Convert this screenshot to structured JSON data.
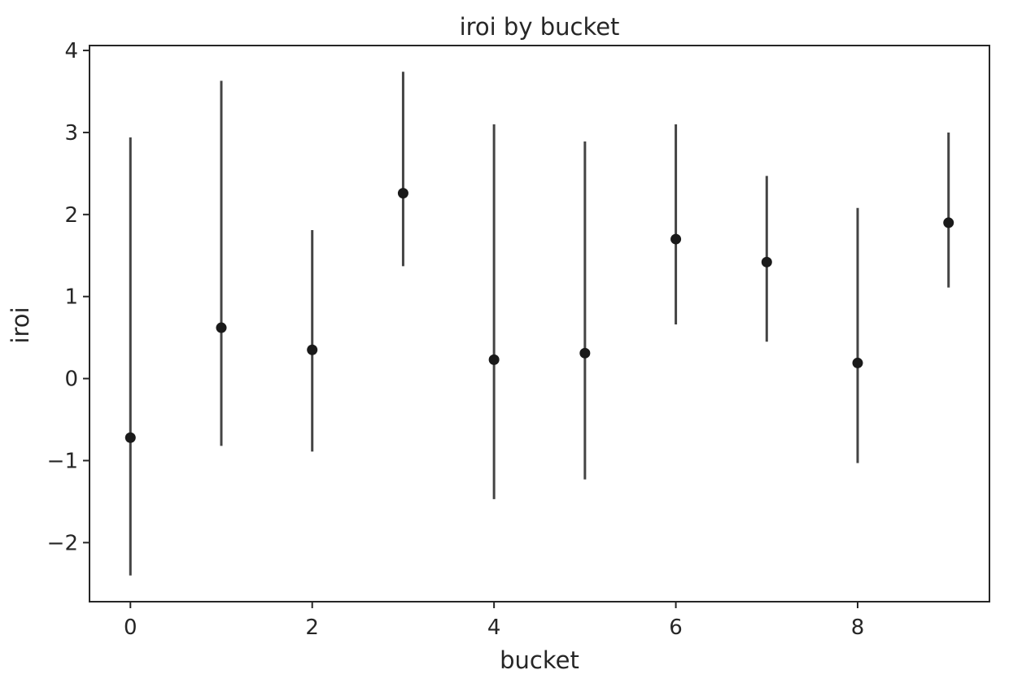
{
  "chart_data": {
    "type": "scatter",
    "title": "iroi by bucket",
    "xlabel": "bucket",
    "ylabel": "iroi",
    "xlim": [
      -0.45,
      9.45
    ],
    "ylim": [
      -2.72,
      4.06
    ],
    "xticks": [
      0,
      2,
      4,
      6,
      8
    ],
    "xtick_labels": [
      "0",
      "2",
      "4",
      "6",
      "8"
    ],
    "yticks": [
      -2,
      -1,
      0,
      1,
      2,
      3,
      4
    ],
    "ytick_labels": [
      "−2",
      "−1",
      "0",
      "1",
      "2",
      "3",
      "4"
    ],
    "grid": false,
    "legend": "none",
    "colors": {
      "point": "#1a1a1a",
      "errorbar": "#444444",
      "axes": "#262626"
    },
    "points": [
      {
        "x": 0,
        "y": -0.72,
        "lower": -2.4,
        "upper": 2.94
      },
      {
        "x": 1,
        "y": 0.62,
        "lower": -0.82,
        "upper": 3.63
      },
      {
        "x": 2,
        "y": 0.35,
        "lower": -0.89,
        "upper": 1.81
      },
      {
        "x": 3,
        "y": 2.26,
        "lower": 1.37,
        "upper": 3.74
      },
      {
        "x": 4,
        "y": 0.23,
        "lower": -1.47,
        "upper": 3.1
      },
      {
        "x": 5,
        "y": 0.31,
        "lower": -1.23,
        "upper": 2.89
      },
      {
        "x": 6,
        "y": 1.7,
        "lower": 0.66,
        "upper": 3.1
      },
      {
        "x": 7,
        "y": 1.42,
        "lower": 0.45,
        "upper": 2.47
      },
      {
        "x": 8,
        "y": 0.19,
        "lower": -1.03,
        "upper": 2.08
      },
      {
        "x": 9,
        "y": 1.9,
        "lower": 1.11,
        "upper": 3.0
      }
    ]
  }
}
